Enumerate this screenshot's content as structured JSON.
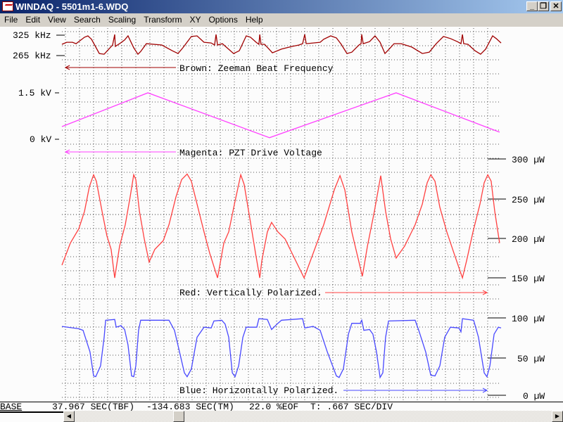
{
  "window": {
    "title": "WINDAQ - 5501m1-6.WDQ",
    "minimize": "_",
    "restore": "❐",
    "close": "✕",
    "icon": "windaq-app-icon"
  },
  "menu": [
    "File",
    "Edit",
    "View",
    "Search",
    "Scaling",
    "Transform",
    "XY",
    "Options",
    "Help"
  ],
  "status": {
    "mode": "BASE",
    "tbf": "37.967 SEC(TBF)",
    "tm": "-134.683 SEC(TM)",
    "eof": "22.0 %EOF",
    "timebase": "T: .667 SEC/DIV"
  },
  "chart_data": {
    "type": "line",
    "xlabel": "",
    "x_units": "SEC",
    "sec_per_div": 0.667,
    "grid": true,
    "channels": [
      {
        "name": "Brown: Zeeman Beat Frequency",
        "color": "#a00000",
        "units": "kHz",
        "scale_labels": [
          "325 kHz",
          "265 kHz"
        ],
        "ylim": [
          265,
          325
        ],
        "points": [
          [
            0,
            298
          ],
          [
            0.23,
            304
          ],
          [
            0.5,
            304
          ],
          [
            0.67,
            300
          ],
          [
            1.07,
            319
          ],
          [
            1.23,
            323
          ],
          [
            1.4,
            313
          ],
          [
            1.77,
            271
          ],
          [
            2.0,
            269
          ],
          [
            2.4,
            296
          ],
          [
            2.5,
            327
          ],
          [
            2.53,
            292
          ],
          [
            2.73,
            300
          ],
          [
            2.97,
            311
          ],
          [
            3.13,
            323
          ],
          [
            3.4,
            288
          ],
          [
            3.6,
            269
          ],
          [
            3.73,
            277
          ],
          [
            4.0,
            300
          ],
          [
            4.73,
            296
          ],
          [
            5.23,
            279
          ],
          [
            5.5,
            271
          ],
          [
            5.73,
            288
          ],
          [
            6.13,
            321
          ],
          [
            6.4,
            323
          ],
          [
            6.73,
            304
          ],
          [
            7.07,
            302
          ],
          [
            7.23,
            296
          ],
          [
            7.3,
            327
          ],
          [
            7.37,
            296
          ],
          [
            7.6,
            300
          ],
          [
            8.13,
            271
          ],
          [
            8.4,
            279
          ],
          [
            8.73,
            323
          ],
          [
            8.93,
            319
          ],
          [
            9.2,
            304
          ],
          [
            9.33,
            298
          ],
          [
            9.37,
            327
          ],
          [
            9.43,
            298
          ],
          [
            9.6,
            298
          ],
          [
            9.97,
            273
          ],
          [
            10.4,
            284
          ],
          [
            10.9,
            292
          ],
          [
            11.23,
            296
          ],
          [
            11.4,
            300
          ],
          [
            11.5,
            327
          ],
          [
            11.57,
            300
          ],
          [
            11.9,
            302
          ],
          [
            12.23,
            304
          ],
          [
            12.4,
            313
          ],
          [
            12.73,
            323
          ],
          [
            13.0,
            317
          ],
          [
            13.23,
            298
          ],
          [
            13.5,
            271
          ],
          [
            13.73,
            275
          ],
          [
            14.07,
            296
          ],
          [
            14.17,
            300
          ],
          [
            14.2,
            327
          ],
          [
            14.27,
            300
          ],
          [
            14.57,
            306
          ],
          [
            14.83,
            323
          ],
          [
            15.07,
            304
          ],
          [
            15.3,
            271
          ],
          [
            15.5,
            284
          ],
          [
            15.73,
            300
          ],
          [
            16.07,
            300
          ],
          [
            16.57,
            290
          ],
          [
            17.07,
            271
          ],
          [
            17.4,
            275
          ],
          [
            17.73,
            300
          ],
          [
            18.07,
            321
          ],
          [
            18.4,
            315
          ],
          [
            18.73,
            306
          ],
          [
            18.9,
            300
          ],
          [
            18.97,
            327
          ],
          [
            19.03,
            300
          ],
          [
            19.23,
            298
          ],
          [
            19.57,
            279
          ],
          [
            19.83,
            269
          ],
          [
            20.07,
            284
          ],
          [
            20.4,
            323
          ],
          [
            20.57,
            315
          ],
          [
            20.8,
            302
          ]
        ]
      },
      {
        "name": "Magenta: PZT Drive Voltage",
        "color": "#ff40ff",
        "units": "kV",
        "scale_labels": [
          "1.5 kV",
          "0 kV"
        ],
        "ylim": [
          0,
          1.5
        ],
        "points": [
          [
            0,
            0.41
          ],
          [
            4.07,
            1.5
          ],
          [
            9.83,
            0.05
          ],
          [
            15.83,
            1.5
          ],
          [
            20.73,
            0.23
          ]
        ]
      },
      {
        "name": "Red: Vertically Polarized.",
        "color": "#ff4040",
        "units": "µW",
        "scale_labels": [
          "300 µW",
          "250 µW",
          "200 µW",
          "150 µW"
        ],
        "ylim": [
          150,
          300
        ],
        "points": [
          [
            0,
            166
          ],
          [
            0.4,
            194
          ],
          [
            0.8,
            212
          ],
          [
            1.07,
            234
          ],
          [
            1.3,
            265
          ],
          [
            1.5,
            280
          ],
          [
            1.63,
            272
          ],
          [
            1.9,
            234
          ],
          [
            2.13,
            203
          ],
          [
            2.33,
            186
          ],
          [
            2.5,
            150
          ],
          [
            2.73,
            190
          ],
          [
            3.0,
            217
          ],
          [
            3.23,
            252
          ],
          [
            3.4,
            280
          ],
          [
            3.5,
            274
          ],
          [
            3.67,
            234
          ],
          [
            3.9,
            199
          ],
          [
            4.13,
            170
          ],
          [
            4.4,
            186
          ],
          [
            4.8,
            197
          ],
          [
            5.07,
            217
          ],
          [
            5.4,
            252
          ],
          [
            5.67,
            274
          ],
          [
            5.93,
            281
          ],
          [
            6.13,
            272
          ],
          [
            6.4,
            243
          ],
          [
            6.73,
            208
          ],
          [
            7.0,
            181
          ],
          [
            7.37,
            150
          ],
          [
            7.67,
            194
          ],
          [
            7.9,
            208
          ],
          [
            8.17,
            243
          ],
          [
            8.47,
            280
          ],
          [
            8.63,
            268
          ],
          [
            8.9,
            225
          ],
          [
            9.17,
            181
          ],
          [
            9.37,
            150
          ],
          [
            9.47,
            172
          ],
          [
            9.73,
            208
          ],
          [
            9.93,
            220
          ],
          [
            10.23,
            208
          ],
          [
            10.57,
            199
          ],
          [
            10.9,
            181
          ],
          [
            11.47,
            150
          ],
          [
            11.9,
            181
          ],
          [
            12.4,
            217
          ],
          [
            12.9,
            261
          ],
          [
            13.17,
            279
          ],
          [
            13.4,
            261
          ],
          [
            13.73,
            208
          ],
          [
            13.97,
            181
          ],
          [
            14.23,
            152
          ],
          [
            14.47,
            190
          ],
          [
            14.8,
            234
          ],
          [
            15.1,
            279
          ],
          [
            15.33,
            234
          ],
          [
            15.57,
            199
          ],
          [
            15.83,
            175
          ],
          [
            16.23,
            190
          ],
          [
            16.73,
            217
          ],
          [
            17.07,
            243
          ],
          [
            17.3,
            270
          ],
          [
            17.47,
            280
          ],
          [
            17.67,
            272
          ],
          [
            17.9,
            239
          ],
          [
            18.23,
            208
          ],
          [
            18.57,
            181
          ],
          [
            18.97,
            150
          ],
          [
            19.17,
            172
          ],
          [
            19.47,
            208
          ],
          [
            19.8,
            243
          ],
          [
            20.0,
            270
          ],
          [
            20.17,
            280
          ],
          [
            20.33,
            272
          ],
          [
            20.5,
            234
          ],
          [
            20.73,
            194
          ]
        ]
      },
      {
        "name": "Blue: Horizontally Polarized.",
        "color": "#4848ff",
        "units": "µW",
        "scale_labels": [
          "100 µW",
          "50 µW",
          "0 µW"
        ],
        "ylim": [
          0,
          100
        ],
        "points": [
          [
            0,
            89
          ],
          [
            0.8,
            86
          ],
          [
            1.0,
            84
          ],
          [
            1.33,
            56
          ],
          [
            1.5,
            25
          ],
          [
            1.6,
            24
          ],
          [
            1.83,
            38
          ],
          [
            2.0,
            75
          ],
          [
            2.07,
            97
          ],
          [
            2.5,
            98
          ],
          [
            2.57,
            88
          ],
          [
            2.8,
            90
          ],
          [
            2.97,
            85
          ],
          [
            3.13,
            65
          ],
          [
            3.3,
            25
          ],
          [
            3.4,
            24
          ],
          [
            3.5,
            38
          ],
          [
            3.63,
            84
          ],
          [
            3.73,
            97
          ],
          [
            5.07,
            97
          ],
          [
            5.33,
            84
          ],
          [
            5.57,
            56
          ],
          [
            5.8,
            29
          ],
          [
            5.93,
            24
          ],
          [
            6.13,
            34
          ],
          [
            6.4,
            75
          ],
          [
            6.73,
            88
          ],
          [
            7.07,
            87
          ],
          [
            7.2,
            96
          ],
          [
            7.57,
            97
          ],
          [
            7.73,
            92
          ],
          [
            7.9,
            75
          ],
          [
            8.07,
            29
          ],
          [
            8.2,
            24
          ],
          [
            8.37,
            38
          ],
          [
            8.57,
            75
          ],
          [
            8.73,
            88
          ],
          [
            9.23,
            88
          ],
          [
            9.33,
            99
          ],
          [
            9.73,
            98
          ],
          [
            9.93,
            85
          ],
          [
            10.23,
            93
          ],
          [
            10.4,
            97
          ],
          [
            11.4,
            99
          ],
          [
            11.5,
            87
          ],
          [
            11.9,
            89
          ],
          [
            12.23,
            84
          ],
          [
            12.57,
            56
          ],
          [
            13.0,
            25
          ],
          [
            13.13,
            23
          ],
          [
            13.33,
            34
          ],
          [
            13.57,
            79
          ],
          [
            13.73,
            93
          ],
          [
            14.13,
            93
          ],
          [
            14.2,
            97
          ],
          [
            14.3,
            84
          ],
          [
            14.57,
            85
          ],
          [
            14.73,
            79
          ],
          [
            14.9,
            56
          ],
          [
            15.07,
            23
          ],
          [
            15.2,
            29
          ],
          [
            15.33,
            75
          ],
          [
            15.47,
            96
          ],
          [
            16.73,
            97
          ],
          [
            16.9,
            84
          ],
          [
            17.23,
            56
          ],
          [
            17.47,
            26
          ],
          [
            17.67,
            25
          ],
          [
            17.9,
            38
          ],
          [
            18.13,
            75
          ],
          [
            18.4,
            88
          ],
          [
            18.8,
            87
          ],
          [
            18.9,
            82
          ],
          [
            18.97,
            99
          ],
          [
            19.5,
            97
          ],
          [
            19.73,
            75
          ],
          [
            20.0,
            29
          ],
          [
            20.13,
            24
          ],
          [
            20.27,
            38
          ],
          [
            20.47,
            79
          ],
          [
            20.67,
            88
          ],
          [
            20.8,
            87
          ]
        ]
      }
    ]
  }
}
